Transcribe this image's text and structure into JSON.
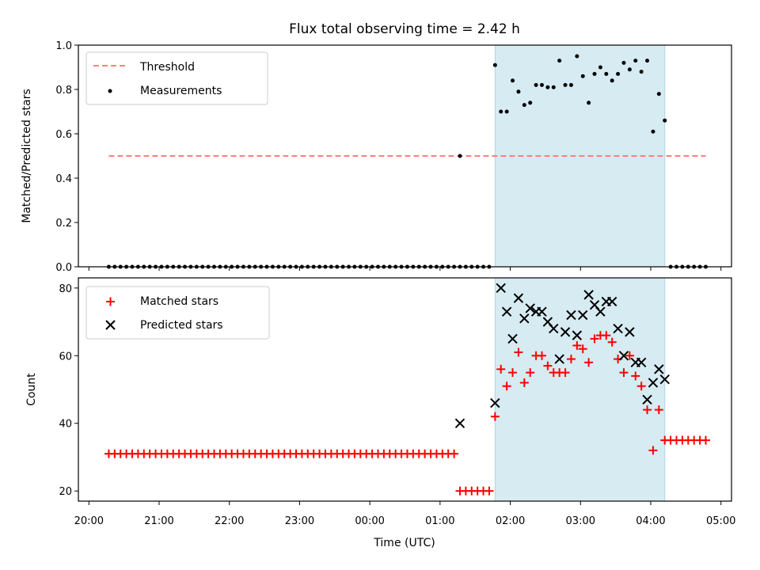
{
  "chart_data": [
    {
      "type": "scatter",
      "title": "Flux total observing time = 2.42 h",
      "ylabel": "Matched/Predicted stars",
      "ylim": [
        0,
        1
      ],
      "yticks": [
        "0.0",
        "0.2",
        "0.4",
        "0.6",
        "0.8",
        "1.0"
      ],
      "shaded_interval": [
        "01:47",
        "04:12"
      ],
      "legend": {
        "placement": "top-left",
        "threshold_label": "Threshold",
        "measurements_label": "Measurements"
      },
      "threshold": {
        "value": 0.5,
        "from": "20:17",
        "to": "04:47",
        "color": "#ff7f7f"
      },
      "zero_points": {
        "value": 0.0,
        "ranges": [
          [
            "20:17",
            "01:17"
          ],
          [
            "01:22",
            "01:42"
          ],
          [
            "04:17",
            "04:47"
          ]
        ]
      },
      "measurements": [
        [
          "01:17",
          0.5
        ],
        [
          "01:47",
          0.91
        ],
        [
          "01:52",
          0.7
        ],
        [
          "01:57",
          0.7
        ],
        [
          "02:02",
          0.84
        ],
        [
          "02:07",
          0.79
        ],
        [
          "02:12",
          0.73
        ],
        [
          "02:17",
          0.74
        ],
        [
          "02:22",
          0.82
        ],
        [
          "02:27",
          0.82
        ],
        [
          "02:32",
          0.81
        ],
        [
          "02:37",
          0.81
        ],
        [
          "02:42",
          0.93
        ],
        [
          "02:47",
          0.82
        ],
        [
          "02:52",
          0.82
        ],
        [
          "02:57",
          0.95
        ],
        [
          "03:02",
          0.86
        ],
        [
          "03:07",
          0.74
        ],
        [
          "03:12",
          0.87
        ],
        [
          "03:17",
          0.9
        ],
        [
          "03:22",
          0.87
        ],
        [
          "03:27",
          0.84
        ],
        [
          "03:32",
          0.87
        ],
        [
          "03:37",
          0.92
        ],
        [
          "03:42",
          0.89
        ],
        [
          "03:47",
          0.93
        ],
        [
          "03:52",
          0.88
        ],
        [
          "03:57",
          0.93
        ],
        [
          "04:02",
          0.61
        ],
        [
          "04:07",
          0.78
        ],
        [
          "04:12",
          0.66
        ]
      ]
    },
    {
      "type": "scatter",
      "xlabel": "Time (UTC)",
      "ylabel": "Count",
      "ylim": [
        17,
        83
      ],
      "yticks": [
        "20",
        "40",
        "60",
        "80"
      ],
      "xticks": [
        "20:00",
        "21:00",
        "22:00",
        "23:00",
        "00:00",
        "01:00",
        "02:00",
        "03:00",
        "04:00",
        "05:00"
      ],
      "xlim": [
        "19:51",
        "05:09"
      ],
      "shaded_interval": [
        "01:47",
        "04:12"
      ],
      "legend": {
        "placement": "top-left",
        "matched_label": "Matched stars",
        "predicted_label": "Predicted stars"
      },
      "matched_constant": [
        {
          "value": 31,
          "from": "20:17",
          "to": "01:12"
        },
        {
          "value": 20,
          "from": "01:17",
          "to": "01:42"
        },
        {
          "value": 35,
          "from": "04:17",
          "to": "04:47"
        }
      ],
      "series": [
        {
          "name": "Matched stars",
          "marker": "+",
          "color": "#ff0000",
          "points": [
            [
              "01:47",
              42
            ],
            [
              "01:52",
              56
            ],
            [
              "01:57",
              51
            ],
            [
              "02:02",
              55
            ],
            [
              "02:07",
              61
            ],
            [
              "02:12",
              52
            ],
            [
              "02:17",
              55
            ],
            [
              "02:22",
              60
            ],
            [
              "02:27",
              60
            ],
            [
              "02:32",
              57
            ],
            [
              "02:37",
              55
            ],
            [
              "02:42",
              55
            ],
            [
              "02:47",
              55
            ],
            [
              "02:52",
              59
            ],
            [
              "02:57",
              63
            ],
            [
              "03:02",
              62
            ],
            [
              "03:07",
              58
            ],
            [
              "03:12",
              65
            ],
            [
              "03:17",
              66
            ],
            [
              "03:22",
              66
            ],
            [
              "03:27",
              64
            ],
            [
              "03:32",
              59
            ],
            [
              "03:37",
              55
            ],
            [
              "03:42",
              60
            ],
            [
              "03:47",
              54
            ],
            [
              "03:52",
              51
            ],
            [
              "03:57",
              44
            ],
            [
              "04:02",
              32
            ],
            [
              "04:07",
              44
            ],
            [
              "04:12",
              35
            ]
          ]
        },
        {
          "name": "Predicted stars",
          "marker": "x",
          "color": "#000000",
          "points": [
            [
              "01:17",
              40
            ],
            [
              "01:47",
              46
            ],
            [
              "01:52",
              80
            ],
            [
              "01:57",
              73
            ],
            [
              "02:02",
              65
            ],
            [
              "02:07",
              77
            ],
            [
              "02:12",
              71
            ],
            [
              "02:17",
              74
            ],
            [
              "02:22",
              73
            ],
            [
              "02:27",
              73
            ],
            [
              "02:32",
              70
            ],
            [
              "02:37",
              68
            ],
            [
              "02:42",
              59
            ],
            [
              "02:47",
              67
            ],
            [
              "02:52",
              72
            ],
            [
              "02:57",
              66
            ],
            [
              "03:02",
              72
            ],
            [
              "03:07",
              78
            ],
            [
              "03:12",
              75
            ],
            [
              "03:17",
              73
            ],
            [
              "03:22",
              76
            ],
            [
              "03:27",
              76
            ],
            [
              "03:32",
              68
            ],
            [
              "03:37",
              60
            ],
            [
              "03:42",
              67
            ],
            [
              "03:47",
              58
            ],
            [
              "03:52",
              58
            ],
            [
              "03:57",
              47
            ],
            [
              "04:02",
              52
            ],
            [
              "04:07",
              56
            ],
            [
              "04:12",
              53
            ]
          ]
        }
      ]
    }
  ]
}
